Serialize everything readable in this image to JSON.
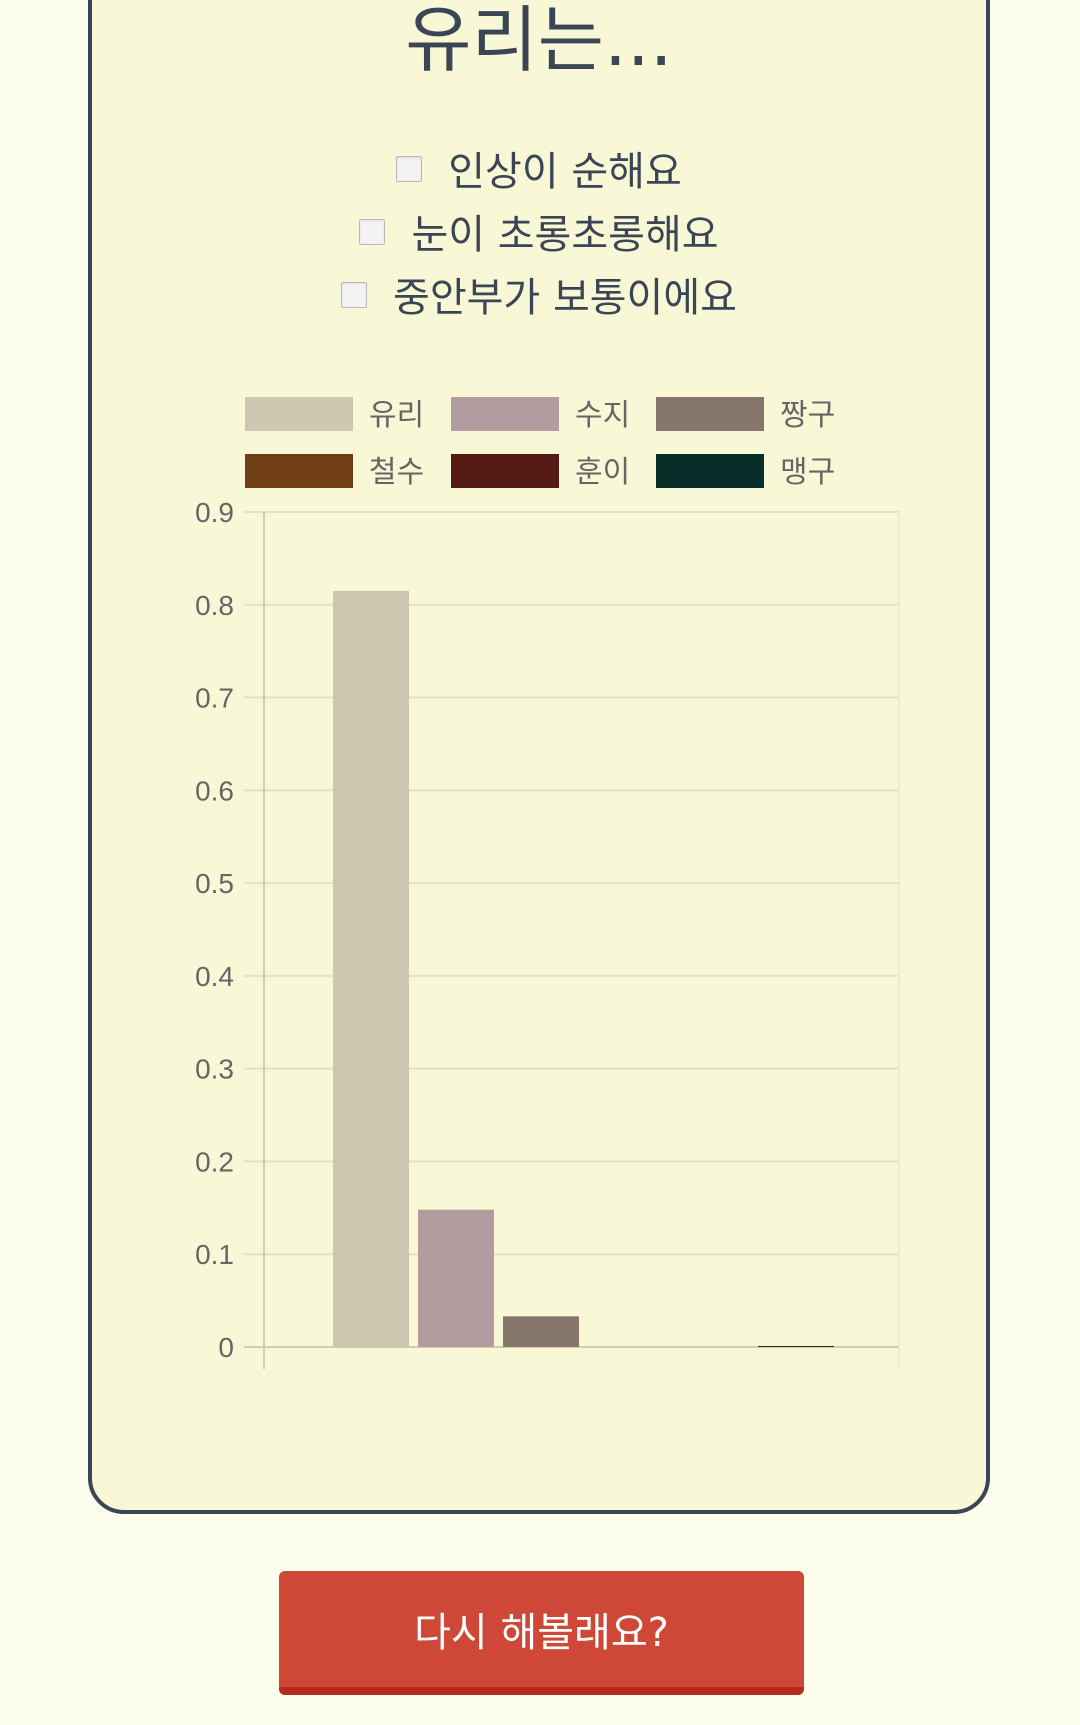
{
  "question": {
    "title": "유리는...",
    "options": [
      "인상이 순해요",
      "눈이 초롱초롱해요",
      "중안부가 보통이에요"
    ]
  },
  "retry_button": {
    "label": "다시 해볼래요?"
  },
  "colors": {
    "card_bg": "#f8f8d6",
    "card_border": "#3a4655",
    "button": "#cf4736"
  },
  "chart_data": {
    "type": "bar",
    "categories": [
      ""
    ],
    "series": [
      {
        "name": "유리",
        "color": "#cfc6b1",
        "values": [
          0.815
        ]
      },
      {
        "name": "수지",
        "color": "#b39ca0",
        "values": [
          0.148
        ]
      },
      {
        "name": "짱구",
        "color": "#86756b",
        "values": [
          0.033
        ]
      },
      {
        "name": "철수",
        "color": "#6f3e17",
        "values": [
          0.0
        ]
      },
      {
        "name": "훈이",
        "color": "#561a15",
        "values": [
          0.0
        ]
      },
      {
        "name": "맹구",
        "color": "#082e2a",
        "values": [
          0.001
        ]
      }
    ],
    "yticks": [
      "0",
      "0.1",
      "0.2",
      "0.3",
      "0.4",
      "0.5",
      "0.6",
      "0.7",
      "0.8",
      "0.9"
    ],
    "ylim": [
      0,
      0.9
    ],
    "grid": true,
    "legend": "top"
  }
}
